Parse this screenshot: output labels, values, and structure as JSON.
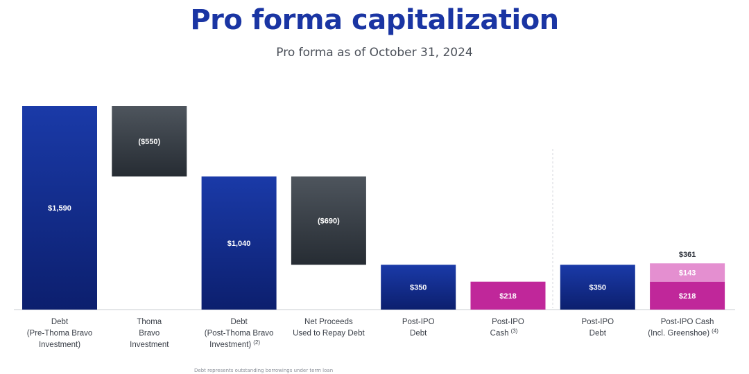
{
  "title": "Pro forma capitalization",
  "subtitle": "Pro forma as of October 31, 2024",
  "footnote": "Debt represents outstanding borrowings under term loan",
  "colors": {
    "title": "#1a35a3",
    "debt_top": "#1a3aa8",
    "debt_bottom": "#0c1f6e",
    "reduction_top": "#4e555d",
    "reduction_bottom": "#262c33",
    "cash": "#c0279a",
    "cash_light": "#e48fd0",
    "label": "#3a3f48"
  },
  "chart_data": {
    "type": "bar",
    "subtype": "waterfall",
    "ylim": [
      0,
      1590
    ],
    "bars": [
      {
        "category": [
          "Debt",
          "(Pre-Thoma Bravo",
          "Investment)"
        ],
        "footnote": "",
        "kind": "debt",
        "base": 0,
        "value": 1590,
        "label": "$1,590"
      },
      {
        "category": [
          "Thoma",
          "Bravo",
          "Investment"
        ],
        "footnote": "",
        "kind": "reduction",
        "base": 1040,
        "value": 550,
        "label": "($550)"
      },
      {
        "category": [
          "Debt",
          "(Post-Thoma Bravo",
          "Investment)"
        ],
        "footnote": "(2)",
        "kind": "debt",
        "base": 0,
        "value": 1040,
        "label": "$1,040"
      },
      {
        "category": [
          "Net Proceeds",
          "Used to Repay Debt"
        ],
        "footnote": "",
        "kind": "reduction",
        "base": 350,
        "value": 690,
        "label": "($690)"
      },
      {
        "category": [
          "Post-IPO",
          "Debt"
        ],
        "footnote": "",
        "kind": "debt",
        "base": 0,
        "value": 350,
        "label": "$350"
      },
      {
        "category": [
          "Post-IPO",
          "Cash"
        ],
        "footnote": "(3)",
        "kind": "cash",
        "base": 0,
        "value": 218,
        "label": "$218"
      },
      {
        "category": [
          "Post-IPO",
          "Debt"
        ],
        "footnote": "",
        "kind": "debt",
        "base": 0,
        "value": 350,
        "label": "$350"
      },
      {
        "category": [
          "Post-IPO Cash",
          "(Incl. Greenshoe)"
        ],
        "footnote": "(4)",
        "kind": "cash_stack",
        "segments": [
          {
            "value": 218,
            "label": "$218",
            "kind": "cash"
          },
          {
            "value": 143,
            "label": "$143",
            "kind": "cash_light"
          }
        ],
        "total": 361,
        "total_label": "$361"
      }
    ]
  }
}
